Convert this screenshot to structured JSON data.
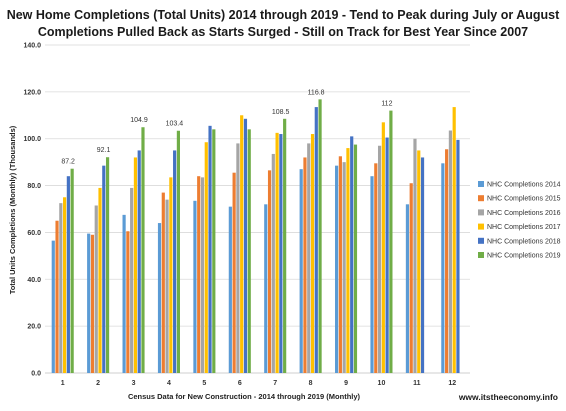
{
  "chart_data": {
    "type": "bar",
    "title": "New Home Completions (Total Units) 2014 through 2019 - Tend to Peak during July or August",
    "subtitle": "Completions Pulled Back as Starts Surged - Still on Track for Best Year Since 2007",
    "xlabel": "Census Data for New Construction - 2014 through 2019 (Monthly)",
    "ylabel": "Total Units Completions (Monthly) (Thousands)",
    "ylim": [
      0,
      140
    ],
    "yticks": [
      "0.0",
      "20.0",
      "40.0",
      "60.0",
      "80.0",
      "100.0",
      "120.0",
      "140.0"
    ],
    "grid": true,
    "legend_position": "right",
    "categories": [
      "1",
      "2",
      "3",
      "4",
      "5",
      "6",
      "7",
      "8",
      "9",
      "10",
      "11",
      "12"
    ],
    "series": [
      {
        "name": "NHC Completions 2014",
        "color": "#5b9bd5",
        "values": [
          56.5,
          59.5,
          67.5,
          64.0,
          73.5,
          71.0,
          72.0,
          87.0,
          88.5,
          84.0,
          72.0,
          89.5
        ]
      },
      {
        "name": "NHC Completions 2015",
        "color": "#ed7d31",
        "values": [
          65.0,
          59.0,
          60.5,
          77.0,
          84.0,
          85.5,
          86.5,
          92.0,
          92.5,
          89.5,
          81.0,
          95.5
        ]
      },
      {
        "name": "NHC Completions 2016",
        "color": "#a5a5a5",
        "values": [
          72.5,
          71.5,
          79.0,
          74.0,
          83.5,
          98.0,
          93.5,
          98.0,
          90.0,
          97.0,
          100.0,
          103.5
        ]
      },
      {
        "name": "NHC Completions 2017",
        "color": "#ffc000",
        "values": [
          75.0,
          79.0,
          92.0,
          83.5,
          98.5,
          110.0,
          102.5,
          102.0,
          96.0,
          107.0,
          95.0,
          113.5
        ]
      },
      {
        "name": "NHC Completions 2018",
        "color": "#4472c4",
        "values": [
          84.0,
          88.5,
          95.0,
          95.0,
          105.5,
          108.5,
          102.0,
          113.5,
          101.0,
          100.5,
          92.0,
          99.5
        ]
      },
      {
        "name": "NHC Completions 2019",
        "color": "#70ad47",
        "values": [
          87.2,
          92.1,
          104.9,
          103.4,
          104.0,
          104.0,
          108.5,
          116.8,
          97.5,
          112.0,
          null,
          null
        ]
      }
    ],
    "data_labels": [
      {
        "category": "1",
        "series": "NHC Completions 2019",
        "text": "87.2"
      },
      {
        "category": "2",
        "series": "NHC Completions 2019",
        "text": "92.1"
      },
      {
        "category": "3",
        "series": "NHC Completions 2019",
        "text": "104.9"
      },
      {
        "category": "4",
        "series": "NHC Completions 2019",
        "text": "103.4"
      },
      {
        "category": "7",
        "series": "NHC Completions 2019",
        "text": "108.5"
      },
      {
        "category": "8",
        "series": "NHC Completions 2019",
        "text": "116.8"
      },
      {
        "category": "10",
        "series": "NHC Completions 2019",
        "text": "112"
      }
    ]
  },
  "watermark": "www.itstheeconomy.info",
  "colors": {
    "gridline": "#d9d9d9",
    "axis": "#bfbfbf"
  }
}
